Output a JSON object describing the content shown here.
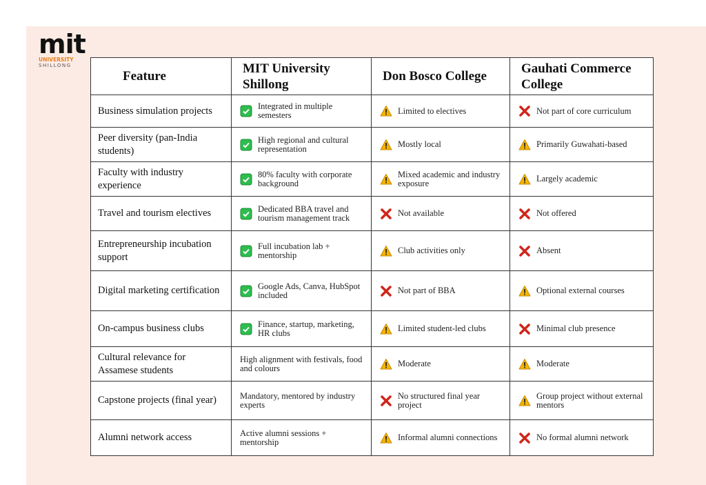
{
  "logo": {
    "name": "mit",
    "line1": "UNIVERSITY",
    "line2": "SHILLONG"
  },
  "table": {
    "header": [
      "Feature",
      "MIT University Shillong",
      "Don Bosco College",
      "Gauhati Commerce College"
    ],
    "rows": [
      [
        "Business simulation projects",
        "Integrated in multiple semesters",
        "Limited to electives",
        "Not part of core curriculum"
      ],
      [
        "Peer diversity (pan-India students)",
        "High regional and cultural representation",
        "Mostly local",
        "Primarily Guwahati-based"
      ],
      [
        "Faculty with industry experience",
        "80% faculty with corporate background",
        "Mixed academic and industry exposure",
        "Largely academic"
      ],
      [
        "Travel and tourism electives",
        "Dedicated BBA travel and tourism management track",
        "Not available",
        "Not offered"
      ],
      [
        "Entrepreneurship incubation support",
        "Full incubation lab + mentorship",
        "Club activities only",
        "Absent"
      ],
      [
        "Digital marketing certification",
        "Google Ads, Canva, HubSpot included",
        "Not part of BBA",
        "Optional external courses"
      ],
      [
        "On-campus business clubs",
        "Finance, startup, marketing, HR clubs",
        "Limited student-led clubs",
        "Minimal club presence"
      ],
      [
        "Cultural relevance for Assamese students",
        "High alignment with festivals, food and colours",
        "Moderate",
        "Moderate"
      ],
      [
        "Capstone projects (final year)",
        "Mandatory, mentored by industry experts",
        "No structured final year project",
        "Group project without external mentors"
      ],
      [
        "Alumni network access",
        "Active alumni sessions + mentorship",
        "Informal alumni connections",
        "No formal alumni network"
      ]
    ]
  }
}
